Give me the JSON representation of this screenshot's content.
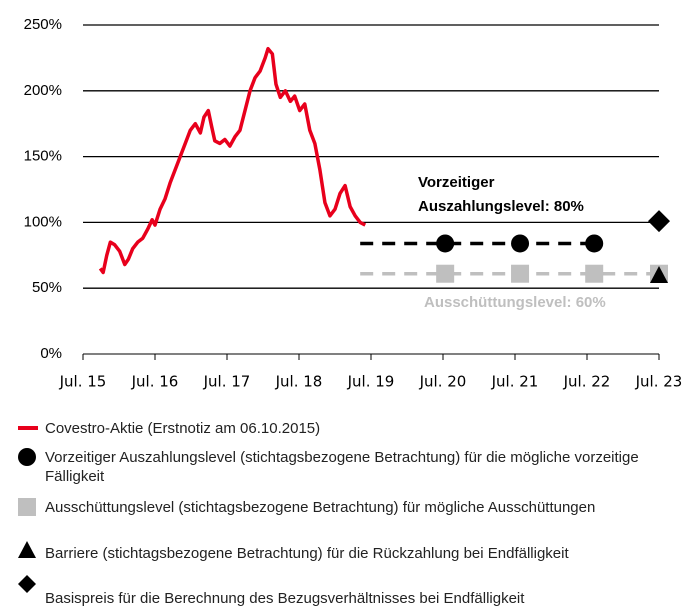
{
  "chart_data": {
    "type": "line",
    "xlim": [
      2015.5,
      2023.5
    ],
    "xticks": [
      {
        "value": 2015.5,
        "label": "Jul. 15"
      },
      {
        "value": 2016.5,
        "label": "Jul. 16"
      },
      {
        "value": 2017.5,
        "label": "Jul. 17"
      },
      {
        "value": 2018.5,
        "label": "Jul. 18"
      },
      {
        "value": 2019.5,
        "label": "Jul. 19"
      },
      {
        "value": 2020.5,
        "label": "Jul. 20"
      },
      {
        "value": 2021.5,
        "label": "Jul. 21"
      },
      {
        "value": 2022.5,
        "label": "Jul. 22"
      },
      {
        "value": 2023.5,
        "label": "Jul. 23"
      }
    ],
    "ylim": [
      0,
      250
    ],
    "yticks": [
      {
        "value": 0,
        "label": "0%"
      },
      {
        "value": 50,
        "label": "50%"
      },
      {
        "value": 100,
        "label": "100%"
      },
      {
        "value": 150,
        "label": "150%"
      },
      {
        "value": 200,
        "label": "200%"
      },
      {
        "value": 250,
        "label": "250%"
      }
    ],
    "grid": true,
    "series": [
      {
        "name": "Covestro-Aktie (Erstnotiz am 06.10.2015)",
        "color": "#e8001c",
        "marker": "line",
        "x": [
          2015.74,
          2015.78,
          2015.83,
          2015.88,
          2015.94,
          2016.01,
          2016.08,
          2016.13,
          2016.19,
          2016.26,
          2016.33,
          2016.4,
          2016.46,
          2016.5,
          2016.57,
          2016.64,
          2016.71,
          2016.78,
          2016.85,
          2016.92,
          2016.99,
          2017.06,
          2017.13,
          2017.18,
          2017.24,
          2017.29,
          2017.33,
          2017.4,
          2017.47,
          2017.54,
          2017.61,
          2017.68,
          2017.75,
          2017.82,
          2017.89,
          2017.96,
          2018.03,
          2018.07,
          2018.13,
          2018.18,
          2018.24,
          2018.31,
          2018.38,
          2018.44,
          2018.51,
          2018.58,
          2018.65,
          2018.72,
          2018.79,
          2018.86,
          2018.93,
          2019.0,
          2019.07,
          2019.14,
          2019.21,
          2019.28,
          2019.35,
          2019.42
        ],
        "values": [
          65,
          62,
          75,
          85,
          83,
          78,
          68,
          72,
          80,
          85,
          88,
          95,
          102,
          98,
          110,
          118,
          130,
          140,
          150,
          160,
          170,
          175,
          168,
          180,
          185,
          172,
          162,
          160,
          163,
          158,
          165,
          170,
          185,
          200,
          210,
          215,
          225,
          232,
          228,
          205,
          195,
          200,
          192,
          196,
          185,
          190,
          170,
          160,
          140,
          115,
          105,
          110,
          122,
          128,
          112,
          105,
          100,
          98
        ]
      },
      {
        "name": "Vorzeitiger Auszahlungslevel (stichtagsbezogene Betrachtung) für die mögliche vorzeitige Fälligkeit",
        "color": "#000000",
        "marker": "circle",
        "x": [
          2020.53,
          2021.57,
          2022.6
        ],
        "values": [
          84,
          84,
          84
        ]
      },
      {
        "name": "Ausschüttungslevel (stichtagsbezogene Betrachtung) für mögliche Ausschüttungen",
        "color": "#bfbfbf",
        "marker": "square",
        "x": [
          2020.53,
          2021.57,
          2022.6,
          2023.5
        ],
        "values": [
          61,
          61,
          61,
          61
        ]
      },
      {
        "name": "Barriere (stichtagsbezogene Betrachtung) für die Rückzahlung bei Endfälligkeit",
        "color": "#000000",
        "marker": "triangle",
        "x": [
          2023.5
        ],
        "values": [
          60
        ]
      },
      {
        "name": "Basispreis für die Berechnung des Bezugsverhältnisses bei Endfälligkeit",
        "color": "#000000",
        "marker": "diamond",
        "x": [
          2023.5
        ],
        "values": [
          101
        ]
      }
    ],
    "guides": [
      {
        "color": "#000000",
        "x": [
          2019.35,
          2022.68
        ],
        "values": [
          84,
          84
        ]
      },
      {
        "color": "#bfbfbf",
        "x": [
          2019.35,
          2023.5
        ],
        "values": [
          61,
          61
        ]
      }
    ],
    "annotations": [
      {
        "lines": [
          "Vorzeitiger",
          "Auszahlungslevel: 80%"
        ],
        "color": "#000000"
      },
      {
        "lines": [
          "Ausschüttungslevel: 60%"
        ],
        "color": "#bfbfbf"
      }
    ]
  }
}
